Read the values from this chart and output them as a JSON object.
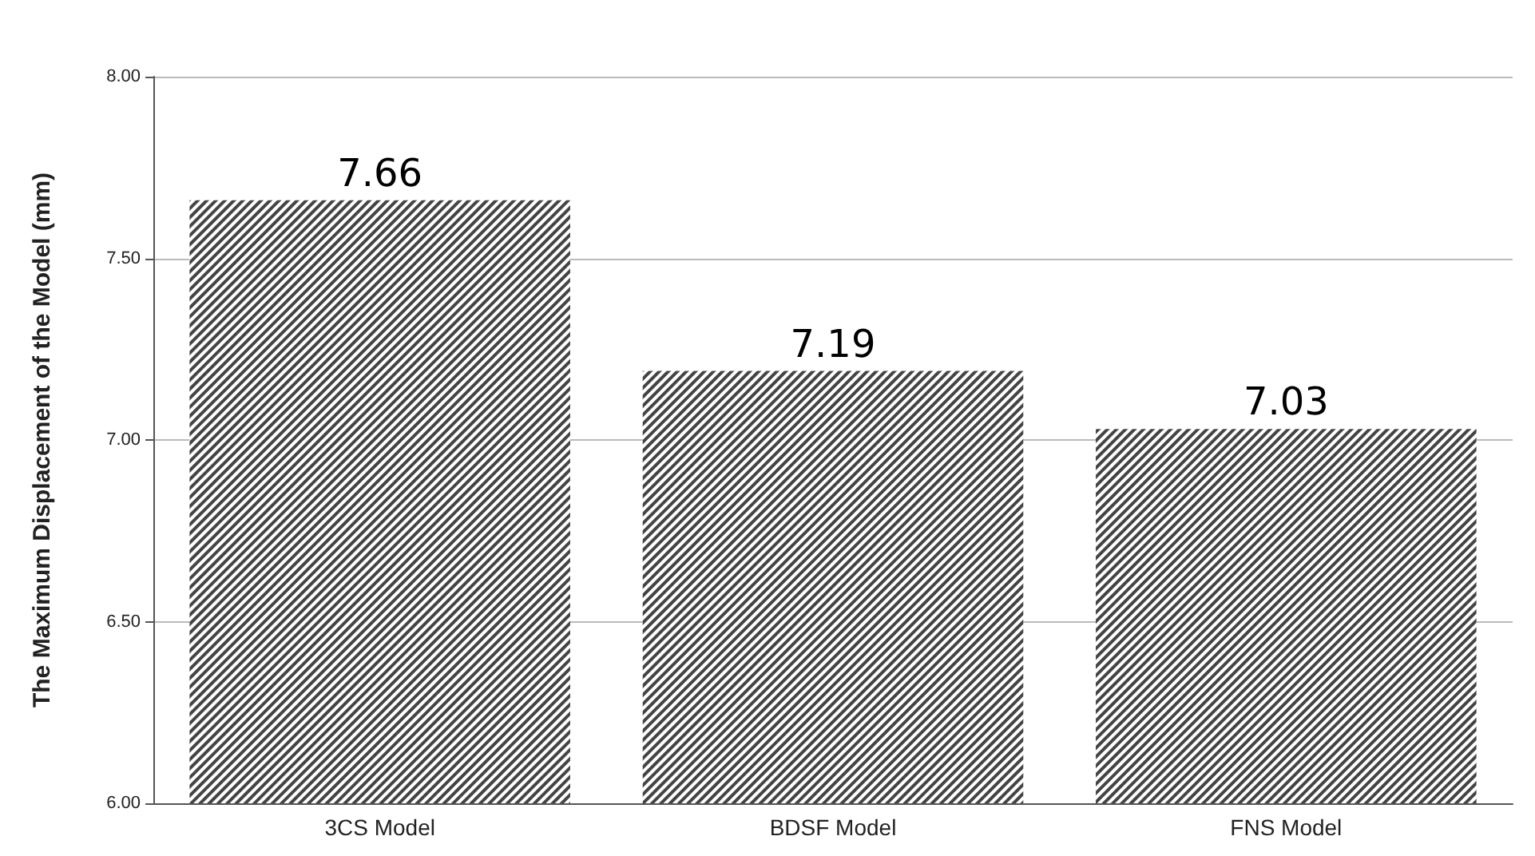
{
  "chart_data": {
    "type": "bar",
    "ylabel": "The Maximum Displacement of the Model (mm)",
    "categories": [
      "3CS Model",
      "BDSF Model",
      "FNS Model"
    ],
    "values": [
      7.66,
      7.19,
      7.03
    ],
    "color": "#444444",
    "ylim": [
      6,
      8
    ],
    "yticks": [
      {
        "value": 6,
        "label": "6.00"
      },
      {
        "value": 6.5,
        "label": "6.50"
      },
      {
        "value": 7,
        "label": "7.00"
      },
      {
        "value": 7.5,
        "label": "7.50"
      },
      {
        "value": 8,
        "label": "8.00"
      }
    ],
    "grid": "y",
    "data_labels": true
  }
}
